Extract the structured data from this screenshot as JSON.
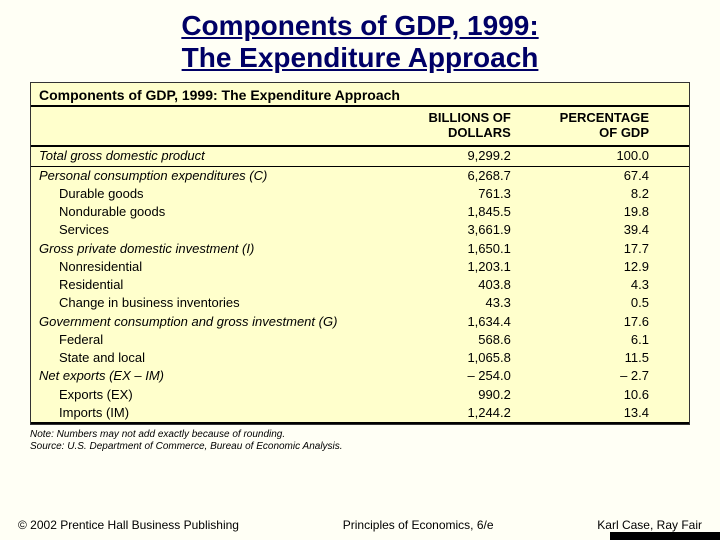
{
  "title_line1": "Components of GDP, 1999:",
  "title_line2": "The Expenditure Approach",
  "table": {
    "caption": "Components of GDP, 1999:  The Expenditure Approach",
    "header_col1": "",
    "header_col2": "BILLIONS OF DOLLARS",
    "header_col3": "PERCENTAGE OF GDP",
    "rows": [
      {
        "label": "Total gross domestic product",
        "italic": true,
        "indent": 0,
        "dollars": "9,299.2",
        "pct": "100.0",
        "sep": true
      },
      {
        "label": "Personal consumption expenditures (C)",
        "italic": true,
        "indent": 0,
        "dollars": "6,268.7",
        "pct": "67.4"
      },
      {
        "label": "Durable goods",
        "italic": false,
        "indent": 1,
        "dollars": "761.3",
        "pct": "8.2"
      },
      {
        "label": "Nondurable goods",
        "italic": false,
        "indent": 1,
        "dollars": "1,845.5",
        "pct": "19.8"
      },
      {
        "label": "Services",
        "italic": false,
        "indent": 1,
        "dollars": "3,661.9",
        "pct": "39.4"
      },
      {
        "label": "Gross private domestic investment (I)",
        "italic": true,
        "indent": 0,
        "dollars": "1,650.1",
        "pct": "17.7"
      },
      {
        "label": "Nonresidential",
        "italic": false,
        "indent": 1,
        "dollars": "1,203.1",
        "pct": "12.9"
      },
      {
        "label": "Residential",
        "italic": false,
        "indent": 1,
        "dollars": "403.8",
        "pct": "4.3"
      },
      {
        "label": "Change in business inventories",
        "italic": false,
        "indent": 1,
        "dollars": "43.3",
        "pct": "0.5"
      },
      {
        "label": "Government consumption and gross investment (G)",
        "italic": true,
        "indent": 0,
        "dollars": "1,634.4",
        "pct": "17.6"
      },
      {
        "label": "Federal",
        "italic": false,
        "indent": 1,
        "dollars": "568.6",
        "pct": "6.1"
      },
      {
        "label": "State and local",
        "italic": false,
        "indent": 1,
        "dollars": "1,065.8",
        "pct": "11.5"
      },
      {
        "label": "Net exports (EX – IM)",
        "italic": true,
        "indent": 0,
        "dollars": "– 254.0",
        "pct": "– 2.7"
      },
      {
        "label": "Exports (EX)",
        "italic": false,
        "indent": 1,
        "dollars": "990.2",
        "pct": "10.6"
      },
      {
        "label": "Imports (IM)",
        "italic": false,
        "indent": 1,
        "dollars": "1,244.2",
        "pct": "13.4",
        "last": true
      }
    ]
  },
  "note_line1": "Note:  Numbers may not add exactly because of rounding.",
  "note_line2": "Source:  U.S. Department of Commerce, Bureau of Economic Analysis.",
  "footer_left": "© 2002 Prentice Hall Business Publishing",
  "footer_center": "Principles of Economics, 6/e",
  "footer_right": "Karl Case, Ray Fair",
  "colors": {
    "slide_bg": "#fffff5",
    "table_bg": "#ffffcc",
    "title_color": "#000066",
    "rule_color": "#000000"
  }
}
